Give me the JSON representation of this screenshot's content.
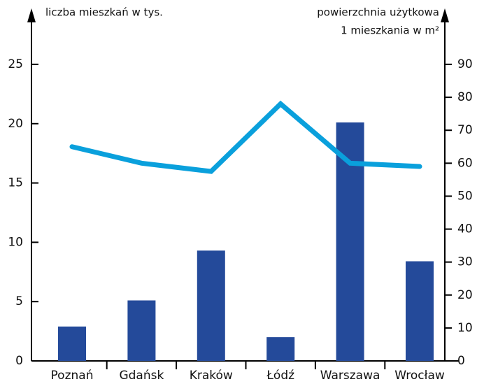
{
  "chart_data": {
    "type": "bar_line",
    "y_label": "liczba mieszkań w tys.",
    "y2_label": [
      "powierzchnia użytkowa",
      "1 mieszkania w m²"
    ],
    "categories": [
      "Poznań",
      "Gdańsk",
      "Kraków",
      "Łódź",
      "Warszawa",
      "Wrocław"
    ],
    "series": [
      {
        "type": "bar",
        "color": "#244a9a",
        "values": [
          2.9,
          5.1,
          9.3,
          2.0,
          20.1,
          8.4
        ]
      },
      {
        "type": "line",
        "axis": "y2",
        "color": "#0aa0dc",
        "values": [
          65,
          60,
          57.5,
          78,
          60,
          59
        ]
      }
    ],
    "ylim": [
      0,
      25
    ],
    "yticks": [
      0,
      5,
      10,
      15,
      20,
      25
    ],
    "y2lim": [
      0,
      90
    ],
    "y2ticks": [
      0,
      10,
      20,
      30,
      40,
      50,
      60,
      70,
      80,
      90
    ]
  }
}
